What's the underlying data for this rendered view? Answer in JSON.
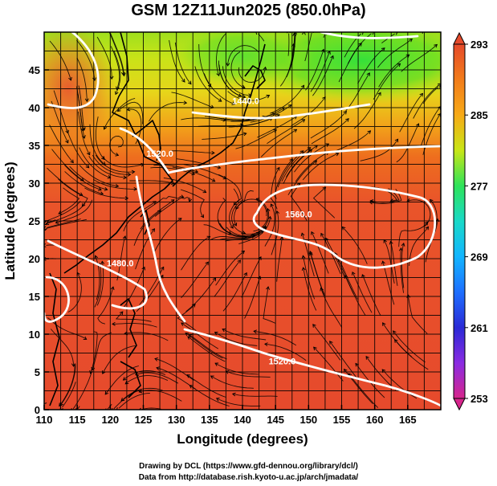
{
  "title": "GSM 12Z11Jun2025 (850.0hPa)",
  "x_axis": {
    "label": "Longitude (degrees)",
    "ticks": [
      "110",
      "115",
      "120",
      "125",
      "130",
      "135",
      "140",
      "145",
      "150",
      "155",
      "160",
      "165"
    ],
    "range": [
      110,
      170
    ]
  },
  "y_axis": {
    "label": "Latitude  (degrees)",
    "ticks": [
      "0",
      "5",
      "10",
      "15",
      "20",
      "25",
      "30",
      "35",
      "40",
      "45"
    ],
    "range": [
      0,
      50
    ]
  },
  "colorbar": {
    "labels": [
      "293",
      "285",
      "277",
      "269",
      "261",
      "253"
    ],
    "range": [
      253,
      293
    ],
    "colors": [
      "#d7258c",
      "#8a2be2",
      "#2a2ad6",
      "#1e6fff",
      "#12b5ff",
      "#19d9c8",
      "#2ee35a",
      "#7fe21a",
      "#c8e616",
      "#efd81a",
      "#f7aa17",
      "#f27c1a",
      "#ec5a1c",
      "#e54a2b"
    ]
  },
  "contours": [
    {
      "label": "1440.0",
      "lon": 140.5,
      "lat": 40.5
    },
    {
      "label": "1520.0",
      "lon": 127.5,
      "lat": 33.5
    },
    {
      "label": "1560.0",
      "lon": 148.5,
      "lat": 25.5
    },
    {
      "label": "1480.0",
      "lon": 121.5,
      "lat": 19.0
    },
    {
      "label": "1520.0",
      "lon": 146.0,
      "lat": 6.0
    }
  ],
  "credits": {
    "line1": "Drawing by DCL (https://www.gfd-dennou.org/library/dcl/)",
    "line2": "Data from http://database.rish.kyoto-u.ac.jp/arch/jmadata/"
  }
}
